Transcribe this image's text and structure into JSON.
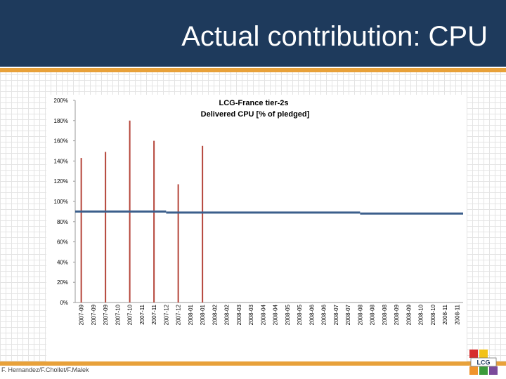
{
  "slide": {
    "title": "Actual contribution: CPU",
    "footer": "F. Hernandez/F.Chollet/F.Malek",
    "logo_text": "LCG"
  },
  "colors": {
    "header_bg": "#1e3a5c",
    "accent": "#e8a13a",
    "bar": "#b5453a",
    "pledge_line": "#3c5f8c"
  },
  "chart_data": {
    "type": "bar",
    "title": "LCG-France tier-2s",
    "subtitle": "Delivered CPU [% of pledged]",
    "xlabel": "",
    "ylabel": "",
    "ylim": [
      0,
      200
    ],
    "yticks": [
      "0%",
      "20%",
      "40%",
      "60%",
      "80%",
      "100%",
      "120%",
      "140%",
      "160%",
      "180%",
      "200%"
    ],
    "ytick_values": [
      0,
      20,
      40,
      60,
      80,
      100,
      120,
      140,
      160,
      180,
      200
    ],
    "grid": false,
    "categories": [
      "2007-09",
      "2007-09",
      "2007-09",
      "2007-10",
      "2007-10",
      "2007-11",
      "2007-11",
      "2007-12",
      "2007-12",
      "2008-01",
      "2008-01",
      "2008-02",
      "2008-02",
      "2008-03",
      "2008-03",
      "2008-04",
      "2008-04",
      "2008-05",
      "2008-05",
      "2008-06",
      "2008-06",
      "2008-07",
      "2008-07",
      "2008-08",
      "2008-08",
      "2008-08",
      "2008-09",
      "2008-09",
      "2008-10",
      "2008-10",
      "2008-11",
      "2008-11"
    ],
    "series": [
      {
        "name": "Delivered CPU",
        "values": [
          143,
          0,
          149,
          0,
          180,
          0,
          160,
          0,
          117,
          0,
          155,
          0,
          0,
          0,
          0,
          0,
          0,
          0,
          0,
          0,
          0,
          0,
          0,
          0,
          0,
          0,
          0,
          0,
          0,
          0,
          0,
          0
        ]
      }
    ],
    "pledge_line": {
      "name": "Pledged",
      "segments": [
        {
          "from": "2007-09",
          "to": "2007-12",
          "value": 90
        },
        {
          "from": "2007-12",
          "to": "2008-08",
          "value": 89
        },
        {
          "from": "2008-08",
          "to": "2008-11",
          "value": 88
        }
      ]
    }
  }
}
